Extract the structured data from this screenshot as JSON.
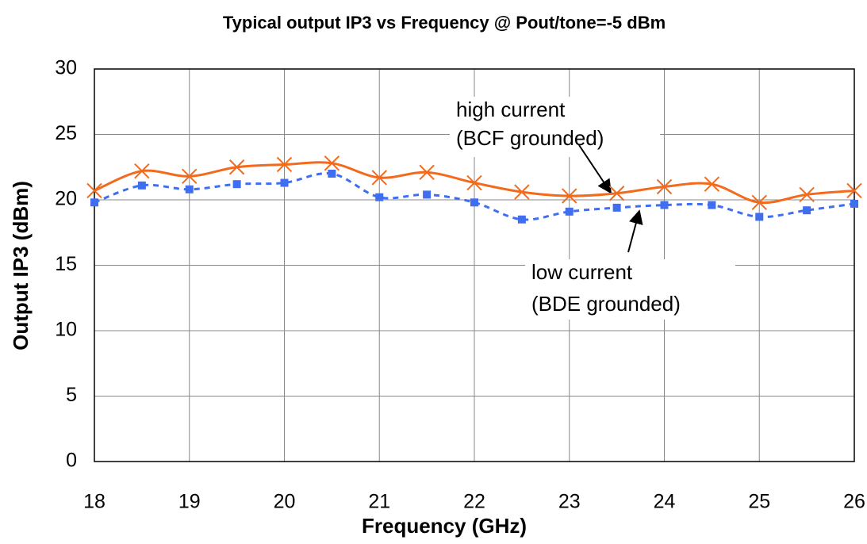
{
  "chart_data": {
    "type": "line",
    "title": "Typical output IP3 vs Frequency @  Pout/tone=-5 dBm",
    "xlabel": "Frequency (GHz)",
    "ylabel": "Output IP3 (dBm)",
    "x": [
      18,
      18.5,
      19,
      19.5,
      20,
      20.5,
      21,
      21.5,
      22,
      22.5,
      23,
      23.5,
      24,
      24.5,
      25,
      25.5,
      26
    ],
    "series": [
      {
        "color": "#f26b1d",
        "marker": "x",
        "dash": "solid",
        "values": [
          20.7,
          22.2,
          21.8,
          22.5,
          22.7,
          22.8,
          21.7,
          22.1,
          21.3,
          20.6,
          20.3,
          20.5,
          21.0,
          21.2,
          19.8,
          20.4,
          20.7
        ]
      },
      {
        "color": "#3f6ff0",
        "marker": "square",
        "dash": "dashed",
        "values": [
          19.8,
          21.1,
          20.8,
          21.2,
          21.3,
          22.0,
          20.2,
          20.4,
          19.8,
          18.5,
          19.1,
          19.4,
          19.6,
          19.6,
          18.7,
          19.2,
          19.7
        ]
      }
    ],
    "annotations": [
      [
        "high current",
        "(BCF grounded)"
      ],
      [
        "low current",
        "(BDE grounded)"
      ]
    ],
    "xlim": [
      18,
      26
    ],
    "xticks": [
      18,
      19,
      20,
      21,
      22,
      23,
      24,
      25,
      26
    ],
    "ylim": [
      0,
      30
    ],
    "yticks": [
      0,
      5,
      10,
      15,
      20,
      25,
      30
    ],
    "grid": true
  }
}
